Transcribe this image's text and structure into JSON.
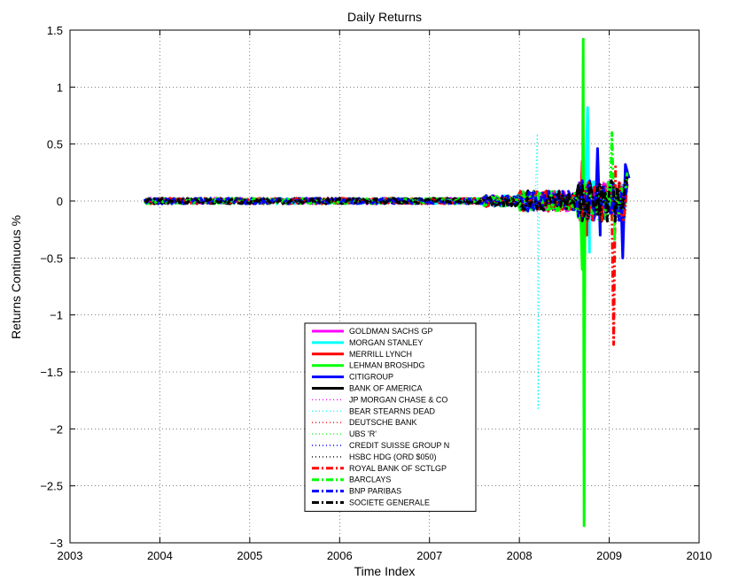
{
  "chart_data": {
    "type": "line",
    "title": "Daily Returns",
    "xlabel": "Time Index",
    "ylabel": "Returns Continuous %",
    "xlim": [
      2003,
      2010
    ],
    "ylim": [
      -3,
      1.5
    ],
    "xticks": [
      2003,
      2004,
      2005,
      2006,
      2007,
      2008,
      2009,
      2010
    ],
    "yticks": [
      -3,
      -2.5,
      -2,
      -1.5,
      -1,
      -0.5,
      0,
      0.5,
      1,
      1.5
    ],
    "grid": true,
    "legend_position": "lower-center",
    "series": [
      {
        "name": "GOLDMAN SACHS GP",
        "color": "#ff00ff",
        "style": "solid",
        "values": [
          [
            2003.83,
            0.02
          ],
          [
            2004.5,
            0.03
          ],
          [
            2005.5,
            -0.02
          ],
          [
            2006.5,
            0.02
          ],
          [
            2007.3,
            0.03
          ],
          [
            2007.8,
            0.06
          ],
          [
            2008.3,
            0.1
          ],
          [
            2008.7,
            0.2
          ],
          [
            2008.85,
            0.25
          ],
          [
            2009.0,
            0.22
          ],
          [
            2009.2,
            0.15
          ]
        ]
      },
      {
        "name": "MORGAN STANLEY",
        "color": "#00ffff",
        "style": "solid",
        "values": [
          [
            2003.83,
            0.03
          ],
          [
            2004.5,
            0.04
          ],
          [
            2005.5,
            -0.03
          ],
          [
            2006.5,
            0.03
          ],
          [
            2007.3,
            0.04
          ],
          [
            2007.9,
            0.07
          ],
          [
            2008.3,
            0.08
          ],
          [
            2008.6,
            0.15
          ],
          [
            2008.76,
            0.82
          ],
          [
            2008.78,
            -0.45
          ],
          [
            2009.0,
            0.3
          ],
          [
            2009.2,
            0.15
          ]
        ]
      },
      {
        "name": "MERRILL LYNCH",
        "color": "#ff0000",
        "style": "solid",
        "values": [
          [
            2003.83,
            0.02
          ],
          [
            2004.5,
            0.03
          ],
          [
            2005.5,
            -0.03
          ],
          [
            2006.5,
            0.02
          ],
          [
            2007.5,
            0.04
          ],
          [
            2007.9,
            0.06
          ],
          [
            2008.3,
            0.08
          ],
          [
            2008.7,
            0.35
          ],
          [
            2008.75,
            -0.3
          ],
          [
            2009.0,
            0.28
          ],
          [
            2009.2,
            0.2
          ]
        ]
      },
      {
        "name": "LEHMAN BROSHDG",
        "color": "#00ff00",
        "style": "solid",
        "values": [
          [
            2003.83,
            0.04
          ],
          [
            2004.5,
            0.05
          ],
          [
            2005.5,
            -0.04
          ],
          [
            2006.5,
            0.03
          ],
          [
            2007.3,
            0.05
          ],
          [
            2007.9,
            0.08
          ],
          [
            2008.2,
            0.2
          ],
          [
            2008.5,
            0.12
          ],
          [
            2008.7,
            -0.6
          ],
          [
            2008.71,
            1.42
          ],
          [
            2008.72,
            -2.85
          ],
          [
            2008.73,
            0.1
          ]
        ]
      },
      {
        "name": "CITIGROUP",
        "color": "#0000ff",
        "style": "solid",
        "values": [
          [
            2003.83,
            0.02
          ],
          [
            2004.5,
            0.03
          ],
          [
            2005.5,
            -0.03
          ],
          [
            2006.5,
            0.02
          ],
          [
            2007.5,
            0.04
          ],
          [
            2007.9,
            0.07
          ],
          [
            2008.4,
            0.12
          ],
          [
            2008.87,
            0.46
          ],
          [
            2008.9,
            -0.3
          ],
          [
            2009.15,
            -0.5
          ],
          [
            2009.18,
            0.32
          ],
          [
            2009.22,
            0.2
          ]
        ]
      },
      {
        "name": "BANK OF AMERICA",
        "color": "#000000",
        "style": "solid",
        "values": [
          [
            2003.83,
            0.02
          ],
          [
            2004.5,
            0.03
          ],
          [
            2005.5,
            -0.03
          ],
          [
            2006.5,
            0.02
          ],
          [
            2007.5,
            0.03
          ],
          [
            2007.9,
            0.06
          ],
          [
            2008.4,
            0.15
          ],
          [
            2008.7,
            0.2
          ],
          [
            2009.0,
            0.2
          ],
          [
            2009.1,
            -0.25
          ],
          [
            2009.2,
            0.25
          ]
        ]
      },
      {
        "name": "JP MORGAN CHASE & CO",
        "color": "#ff00ff",
        "style": "dotted",
        "values": [
          [
            2003.83,
            0.02
          ],
          [
            2004.5,
            0.03
          ],
          [
            2005.5,
            -0.02
          ],
          [
            2006.5,
            0.02
          ],
          [
            2007.5,
            0.03
          ],
          [
            2008.0,
            0.05
          ],
          [
            2008.7,
            0.18
          ],
          [
            2009.0,
            0.2
          ],
          [
            2009.2,
            0.18
          ]
        ]
      },
      {
        "name": "BEAR STEARNS DEAD",
        "color": "#00ffff",
        "style": "dotted",
        "values": [
          [
            2003.83,
            0.02
          ],
          [
            2004.5,
            0.03
          ],
          [
            2005.5,
            -0.02
          ],
          [
            2006.5,
            0.02
          ],
          [
            2007.5,
            0.04
          ],
          [
            2008.0,
            0.07
          ],
          [
            2008.2,
            0.59
          ],
          [
            2008.21,
            -1.82
          ],
          [
            2008.22,
            0.05
          ]
        ]
      },
      {
        "name": "DEUTSCHE BANK",
        "color": "#ff0000",
        "style": "dotted",
        "values": [
          [
            2003.83,
            0.03
          ],
          [
            2004.5,
            0.03
          ],
          [
            2005.5,
            -0.02
          ],
          [
            2006.5,
            0.02
          ],
          [
            2007.5,
            0.03
          ],
          [
            2008.0,
            0.05
          ],
          [
            2008.7,
            0.15
          ],
          [
            2009.0,
            0.18
          ],
          [
            2009.2,
            0.15
          ]
        ]
      },
      {
        "name": "UBS 'R'",
        "color": "#00ff00",
        "style": "dotted",
        "values": [
          [
            2003.83,
            0.03
          ],
          [
            2004.5,
            0.04
          ],
          [
            2005.5,
            -0.03
          ],
          [
            2006.5,
            0.03
          ],
          [
            2007.5,
            0.04
          ],
          [
            2008.0,
            0.06
          ],
          [
            2008.7,
            0.2
          ],
          [
            2009.0,
            0.22
          ],
          [
            2009.2,
            0.18
          ]
        ]
      },
      {
        "name": "CREDIT SUISSE GROUP N",
        "color": "#0000ff",
        "style": "dotted",
        "values": [
          [
            2003.83,
            0.02
          ],
          [
            2004.5,
            0.03
          ],
          [
            2005.5,
            -0.02
          ],
          [
            2006.5,
            0.02
          ],
          [
            2007.5,
            0.03
          ],
          [
            2008.0,
            0.05
          ],
          [
            2008.7,
            0.15
          ],
          [
            2009.0,
            0.16
          ],
          [
            2009.2,
            0.14
          ]
        ]
      },
      {
        "name": "HSBC HDG (ORD $050)",
        "color": "#000000",
        "style": "dotted",
        "values": [
          [
            2003.83,
            0.01
          ],
          [
            2004.5,
            0.02
          ],
          [
            2005.5,
            -0.01
          ],
          [
            2006.5,
            0.01
          ],
          [
            2007.5,
            0.02
          ],
          [
            2008.0,
            0.04
          ],
          [
            2008.7,
            0.12
          ],
          [
            2009.0,
            0.15
          ],
          [
            2009.2,
            0.12
          ]
        ]
      },
      {
        "name": "ROYAL BANK OF SCTLGP",
        "color": "#ff0000",
        "style": "dashdot",
        "values": [
          [
            2003.83,
            0.02
          ],
          [
            2004.5,
            0.03
          ],
          [
            2005.5,
            -0.02
          ],
          [
            2006.5,
            0.02
          ],
          [
            2007.5,
            0.03
          ],
          [
            2008.0,
            0.05
          ],
          [
            2008.7,
            0.2
          ],
          [
            2008.79,
            -0.47
          ],
          [
            2009.05,
            -1.26
          ],
          [
            2009.07,
            0.3
          ],
          [
            2009.2,
            0.15
          ]
        ]
      },
      {
        "name": "BARCLAYS",
        "color": "#00ff00",
        "style": "dashdot",
        "values": [
          [
            2003.83,
            0.03
          ],
          [
            2004.5,
            0.04
          ],
          [
            2005.5,
            -0.03
          ],
          [
            2006.5,
            0.03
          ],
          [
            2007.5,
            0.04
          ],
          [
            2008.0,
            0.06
          ],
          [
            2008.7,
            0.2
          ],
          [
            2009.03,
            0.6
          ],
          [
            2009.06,
            -0.35
          ],
          [
            2009.2,
            0.25
          ]
        ]
      },
      {
        "name": "BNP PARIBAS",
        "color": "#0000ff",
        "style": "dashdot",
        "values": [
          [
            2003.83,
            0.02
          ],
          [
            2004.5,
            0.03
          ],
          [
            2005.5,
            -0.02
          ],
          [
            2006.5,
            0.02
          ],
          [
            2007.5,
            0.03
          ],
          [
            2008.0,
            0.05
          ],
          [
            2008.7,
            0.15
          ],
          [
            2009.0,
            0.18
          ],
          [
            2009.2,
            0.15
          ]
        ]
      },
      {
        "name": "SOCIETE GENERALE",
        "color": "#000000",
        "style": "dashdot",
        "values": [
          [
            2003.83,
            0.02
          ],
          [
            2004.5,
            0.03
          ],
          [
            2005.5,
            -0.02
          ],
          [
            2006.5,
            0.02
          ],
          [
            2007.5,
            0.03
          ],
          [
            2008.0,
            0.06
          ],
          [
            2008.7,
            0.15
          ],
          [
            2009.0,
            0.18
          ],
          [
            2009.2,
            0.15
          ]
        ]
      }
    ]
  }
}
